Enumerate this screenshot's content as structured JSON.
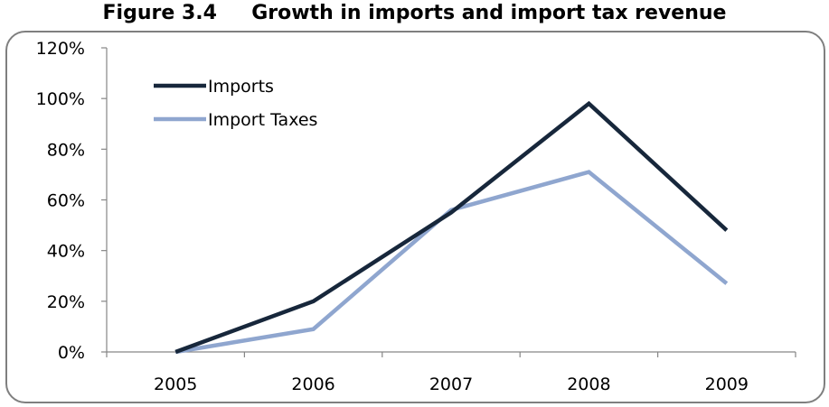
{
  "figure": {
    "title": "Figure 3.4     Growth in imports and import tax revenue"
  },
  "chart_data": {
    "type": "line",
    "title": "Figure 3.4     Growth in imports and import tax revenue",
    "xlabel": "",
    "ylabel": "",
    "categories": [
      "2005",
      "2006",
      "2007",
      "2008",
      "2009"
    ],
    "y_tick_labels": [
      "0%",
      "20%",
      "40%",
      "60%",
      "80%",
      "100%",
      "120%"
    ],
    "ylim": [
      0,
      120
    ],
    "y_unit": "%",
    "grid": false,
    "legend_position": "top-left",
    "series": [
      {
        "name": "Imports",
        "values": [
          0,
          20,
          55,
          98,
          48
        ],
        "color": "#17273b"
      },
      {
        "name": "Import Taxes",
        "values": [
          0,
          9,
          56,
          71,
          27
        ],
        "color": "#8fa6cf"
      }
    ]
  }
}
